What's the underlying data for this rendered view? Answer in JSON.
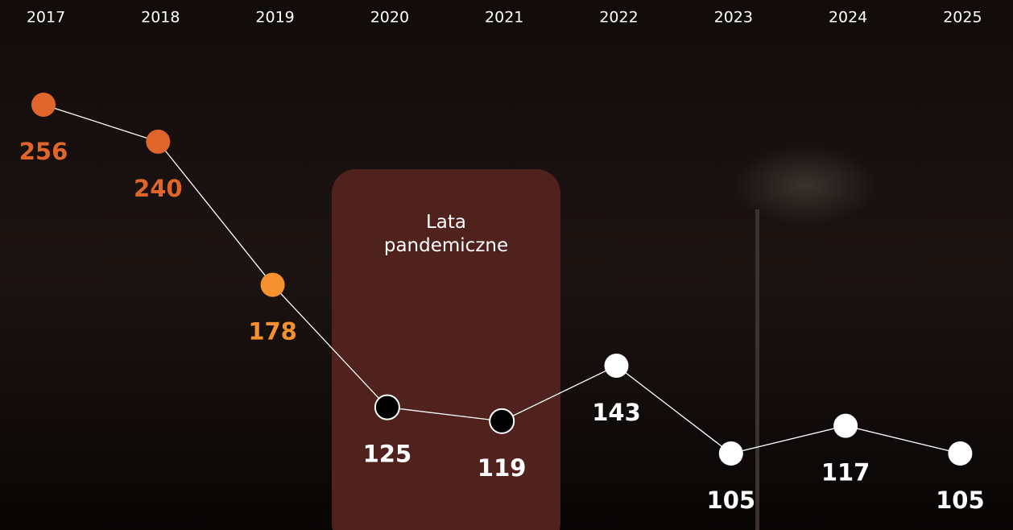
{
  "chart_data": {
    "type": "line",
    "categories": [
      "2017",
      "2018",
      "2019",
      "2020",
      "2021",
      "2022",
      "2023",
      "2024",
      "2025"
    ],
    "values": [
      256,
      240,
      178,
      125,
      119,
      143,
      105,
      117,
      105
    ],
    "point_colors": [
      "#e0652b",
      "#e0652b",
      "#f5922f",
      "#000000",
      "#000000",
      "#ffffff",
      "#ffffff",
      "#ffffff",
      "#ffffff"
    ],
    "label_colors": [
      "#e0652b",
      "#e0652b",
      "#f5922f",
      "#ffffff",
      "#ffffff",
      "#ffffff",
      "#ffffff",
      "#ffffff",
      "#ffffff"
    ],
    "line_color": "#ffffff",
    "annotation": "Lata pandemiczne"
  }
}
